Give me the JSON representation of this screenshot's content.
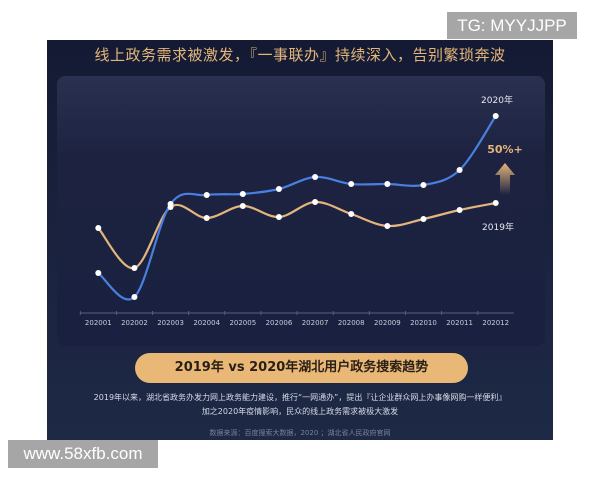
{
  "headline": "线上政务需求被激发，『一事联办』持续深入，告别繁琐奔波",
  "chart_data": {
    "type": "line",
    "title": "2019年 vs 2020年湖北用户政务搜索趋势",
    "categories": [
      "202001",
      "202002",
      "202003",
      "202004",
      "202005",
      "202006",
      "202007",
      "202008",
      "202009",
      "202010",
      "202011",
      "202012"
    ],
    "series": [
      {
        "name": "2020年",
        "color": "#4a7fe0",
        "values": [
          40,
          16,
          109,
          118,
          119,
          124,
          136,
          129,
          129,
          128,
          143,
          197
        ]
      },
      {
        "name": "2019年",
        "color": "#e3b57c",
        "values": [
          85,
          45,
          106,
          95,
          107,
          96,
          111,
          99,
          87,
          94,
          103,
          110
        ]
      }
    ],
    "annotation": "50%+",
    "y_axis_visible": false,
    "grid": false,
    "value_note": "relative search index, no y axis printed"
  },
  "description": {
    "line1": "2019年以来，湖北省政务办发力网上政务能力建设，推行“一网通办”，提出『让企业群众网上办事像网购一样便利』",
    "line2": "加之2020年疫情影响，民众的线上政务需求被极大激发",
    "source": "数据来源：百度搜索大数据，2020 ；湖北省人民政府官网"
  },
  "watermarks": {
    "top": "TG: MYYJJPP",
    "bottom": "www.58xfb.com"
  }
}
